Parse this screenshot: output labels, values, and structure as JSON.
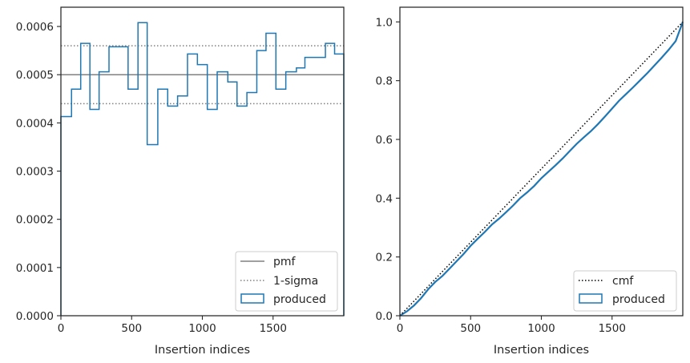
{
  "chart_data": [
    {
      "type": "line",
      "xlabel": "Insertion indices",
      "ylabel": "",
      "xlim": [
        0,
        2000
      ],
      "ylim": [
        0,
        0.00064
      ],
      "x_ticks": [
        0,
        500,
        1000,
        1500
      ],
      "x_tick_labels": [
        "0",
        "500",
        "1000",
        "1500"
      ],
      "y_ticks": [
        0,
        0.0001,
        0.0002,
        0.0003,
        0.0004,
        0.0005,
        0.0006
      ],
      "y_tick_labels": [
        "0.0000",
        "0.0001",
        "0.0002",
        "0.0003",
        "0.0004",
        "0.0005",
        "0.0006"
      ],
      "grid": false,
      "legend_position": "lower-right",
      "pmf": 0.0005,
      "sigma_band": [
        0.00044,
        0.00056
      ],
      "histogram_bin_edges": [
        0,
        75,
        140,
        205,
        270,
        340,
        475,
        545,
        610,
        685,
        755,
        825,
        895,
        965,
        1035,
        1105,
        1180,
        1245,
        1315,
        1385,
        1450,
        1520,
        1590,
        1665,
        1725,
        1795,
        1870,
        1935,
        2000
      ],
      "histogram_values": [
        0.000413,
        0.00047,
        0.000565,
        0.000428,
        0.000506,
        0.000558,
        0.00047,
        0.000608,
        0.000355,
        0.00047,
        0.000435,
        0.000456,
        0.000543,
        0.000521,
        0.000428,
        0.000506,
        0.000485,
        0.000435,
        0.000463,
        0.00055,
        0.000586,
        0.00047,
        0.000506,
        0.000514,
        0.000536,
        0.000536,
        0.000565,
        0.000543
      ],
      "legend": [
        {
          "label": "pmf",
          "style": "solid",
          "color": "#808080"
        },
        {
          "label": "1-sigma",
          "style": "dotted",
          "color": "#808080"
        },
        {
          "label": "produced",
          "style": "box",
          "color": "#1f77b4"
        }
      ]
    },
    {
      "type": "line",
      "xlabel": "Insertion indices",
      "ylabel": "",
      "xlim": [
        0,
        2000
      ],
      "ylim": [
        0,
        1.05
      ],
      "x_ticks": [
        0,
        500,
        1000,
        1500
      ],
      "x_tick_labels": [
        "0",
        "500",
        "1000",
        "1500"
      ],
      "y_ticks": [
        0,
        0.2,
        0.4,
        0.6,
        0.8,
        1.0
      ],
      "y_tick_labels": [
        "0.0",
        "0.2",
        "0.4",
        "0.6",
        "0.8",
        "1.0"
      ],
      "grid": false,
      "legend_position": "lower-right",
      "cmf": {
        "x": [
          0,
          2000
        ],
        "y": [
          0,
          1.0
        ]
      },
      "produced_curve": {
        "x": [
          0,
          50,
          100,
          150,
          200,
          250,
          300,
          350,
          400,
          450,
          500,
          550,
          600,
          650,
          700,
          750,
          800,
          850,
          900,
          950,
          1000,
          1050,
          1100,
          1150,
          1200,
          1250,
          1300,
          1350,
          1400,
          1450,
          1500,
          1550,
          1600,
          1650,
          1700,
          1750,
          1800,
          1850,
          1900,
          1950,
          2000
        ],
        "y": [
          0,
          0.015,
          0.035,
          0.06,
          0.09,
          0.115,
          0.135,
          0.16,
          0.185,
          0.21,
          0.238,
          0.262,
          0.285,
          0.31,
          0.33,
          0.352,
          0.375,
          0.4,
          0.42,
          0.442,
          0.468,
          0.49,
          0.512,
          0.535,
          0.56,
          0.585,
          0.607,
          0.628,
          0.652,
          0.678,
          0.705,
          0.732,
          0.755,
          0.778,
          0.802,
          0.826,
          0.852,
          0.878,
          0.905,
          0.935,
          1.0
        ]
      },
      "legend": [
        {
          "label": "cmf",
          "style": "dotted",
          "color": "#000000"
        },
        {
          "label": "produced",
          "style": "box",
          "color": "#1f77b4"
        }
      ]
    }
  ]
}
